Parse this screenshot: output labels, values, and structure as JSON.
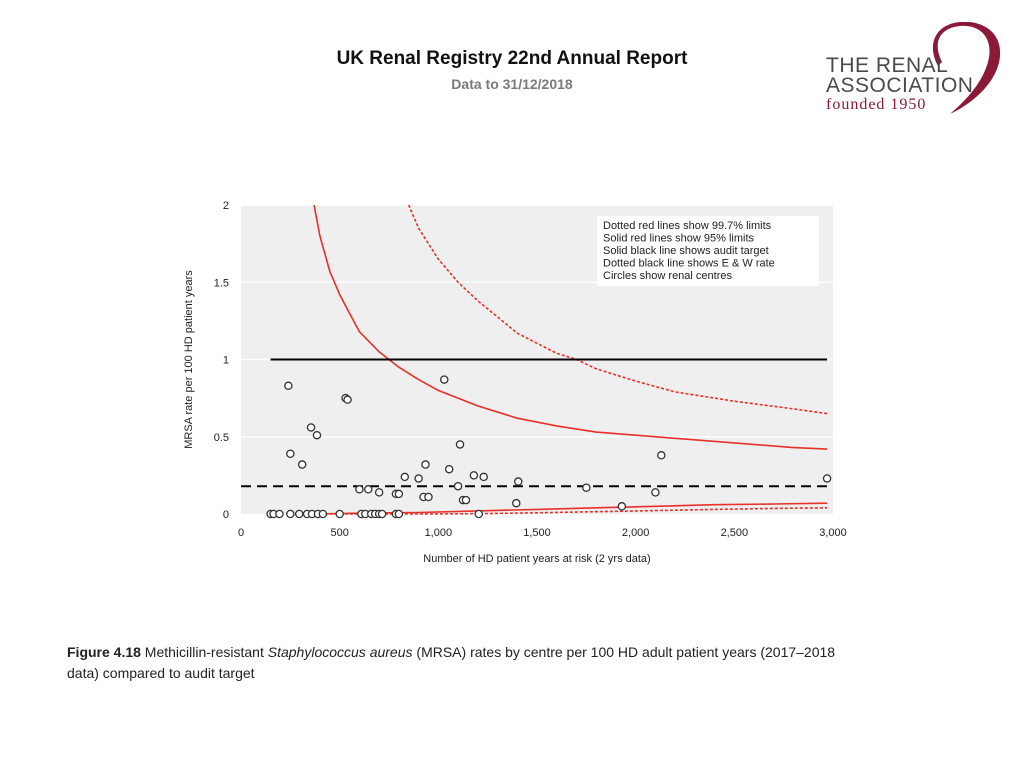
{
  "header": {
    "title": "UK Renal Registry 22nd Annual Report",
    "subtitle": "Data to 31/12/2018"
  },
  "logo": {
    "line1": "THE RENAL",
    "line2": "ASSOCIATION",
    "line3": "founded 1950",
    "color": "#8b1a3a"
  },
  "caption": {
    "label": "Figure 4.18",
    "text_before": " Methicillin-resistant ",
    "italic": "Staphylococcus aureus",
    "text_after": " (MRSA) rates by centre per 100 HD adult patient years (2017–2018 data) compared to audit target"
  },
  "chart_data": {
    "type": "scatter",
    "xlabel": "Number of HD patient years at risk (2 yrs data)",
    "ylabel": "MRSA rate per 100 HD patient years",
    "xlim": [
      0,
      3000
    ],
    "ylim": [
      0,
      2
    ],
    "x_ticks": [
      0,
      500,
      1000,
      1500,
      2000,
      2500,
      3000
    ],
    "x_tick_labels": [
      "0",
      "500",
      "1,000",
      "1,500",
      "2,000",
      "2,500",
      "3,000"
    ],
    "y_ticks": [
      0,
      0.5,
      1,
      1.5,
      2
    ],
    "y_tick_labels": [
      "0",
      "0.5",
      "1",
      "1.5",
      "2"
    ],
    "audit_target": 1,
    "ew_rate": 0.18,
    "legend": [
      "Dotted red lines show 99.7% limits",
      "Solid red lines show 95% limits",
      "Solid black line shows audit target",
      "Dotted black line shows E & W rate",
      "Circles show renal centres"
    ],
    "upper95": [
      [
        370,
        2
      ],
      [
        400,
        1.8
      ],
      [
        450,
        1.57
      ],
      [
        500,
        1.42
      ],
      [
        550,
        1.3
      ],
      [
        600,
        1.18
      ],
      [
        700,
        1.05
      ],
      [
        800,
        0.95
      ],
      [
        900,
        0.87
      ],
      [
        1000,
        0.8
      ],
      [
        1200,
        0.7
      ],
      [
        1400,
        0.62
      ],
      [
        1600,
        0.57
      ],
      [
        1800,
        0.53
      ],
      [
        2000,
        0.51
      ],
      [
        2200,
        0.49
      ],
      [
        2500,
        0.46
      ],
      [
        2800,
        0.43
      ],
      [
        2970,
        0.42
      ]
    ],
    "upper997": [
      [
        850,
        2
      ],
      [
        900,
        1.85
      ],
      [
        1000,
        1.65
      ],
      [
        1100,
        1.5
      ],
      [
        1200,
        1.38
      ],
      [
        1400,
        1.17
      ],
      [
        1600,
        1.04
      ],
      [
        1700,
        1.0
      ],
      [
        1800,
        0.94
      ],
      [
        2000,
        0.86
      ],
      [
        2200,
        0.79
      ],
      [
        2500,
        0.73
      ],
      [
        2800,
        0.68
      ],
      [
        2970,
        0.65
      ]
    ],
    "lower95": [
      [
        370,
        0
      ],
      [
        600,
        0.005
      ],
      [
        900,
        0.01
      ],
      [
        1200,
        0.02
      ],
      [
        1500,
        0.03
      ],
      [
        1800,
        0.04
      ],
      [
        2100,
        0.05
      ],
      [
        2400,
        0.06
      ],
      [
        2700,
        0.065
      ],
      [
        2970,
        0.07
      ]
    ],
    "lower997": [
      [
        400,
        0
      ],
      [
        900,
        0
      ],
      [
        1200,
        0.002
      ],
      [
        1500,
        0.008
      ],
      [
        1800,
        0.015
      ],
      [
        2100,
        0.022
      ],
      [
        2400,
        0.03
      ],
      [
        2700,
        0.036
      ],
      [
        2970,
        0.04
      ]
    ],
    "points": [
      {
        "x": 150,
        "y": 0
      },
      {
        "x": 165,
        "y": 0
      },
      {
        "x": 195,
        "y": 0
      },
      {
        "x": 250,
        "y": 0
      },
      {
        "x": 295,
        "y": 0
      },
      {
        "x": 335,
        "y": 0
      },
      {
        "x": 360,
        "y": 0
      },
      {
        "x": 390,
        "y": 0
      },
      {
        "x": 415,
        "y": 0
      },
      {
        "x": 500,
        "y": 0
      },
      {
        "x": 610,
        "y": 0
      },
      {
        "x": 630,
        "y": 0
      },
      {
        "x": 660,
        "y": 0
      },
      {
        "x": 680,
        "y": 0
      },
      {
        "x": 700,
        "y": 0
      },
      {
        "x": 715,
        "y": 0
      },
      {
        "x": 785,
        "y": 0
      },
      {
        "x": 800,
        "y": 0
      },
      {
        "x": 1205,
        "y": 0
      },
      {
        "x": 240,
        "y": 0.83
      },
      {
        "x": 250,
        "y": 0.39
      },
      {
        "x": 310,
        "y": 0.32
      },
      {
        "x": 355,
        "y": 0.56
      },
      {
        "x": 385,
        "y": 0.51
      },
      {
        "x": 530,
        "y": 0.75
      },
      {
        "x": 540,
        "y": 0.74
      },
      {
        "x": 1030,
        "y": 0.87
      },
      {
        "x": 600,
        "y": 0.16
      },
      {
        "x": 645,
        "y": 0.16
      },
      {
        "x": 700,
        "y": 0.14
      },
      {
        "x": 785,
        "y": 0.13
      },
      {
        "x": 800,
        "y": 0.13
      },
      {
        "x": 830,
        "y": 0.24
      },
      {
        "x": 900,
        "y": 0.23
      },
      {
        "x": 935,
        "y": 0.32
      },
      {
        "x": 925,
        "y": 0.11
      },
      {
        "x": 950,
        "y": 0.11
      },
      {
        "x": 1055,
        "y": 0.29
      },
      {
        "x": 1100,
        "y": 0.18
      },
      {
        "x": 1110,
        "y": 0.45
      },
      {
        "x": 1125,
        "y": 0.09
      },
      {
        "x": 1140,
        "y": 0.09
      },
      {
        "x": 1180,
        "y": 0.25
      },
      {
        "x": 1230,
        "y": 0.24
      },
      {
        "x": 1395,
        "y": 0.07
      },
      {
        "x": 1405,
        "y": 0.21
      },
      {
        "x": 1750,
        "y": 0.17
      },
      {
        "x": 1930,
        "y": 0.05
      },
      {
        "x": 2100,
        "y": 0.14
      },
      {
        "x": 2130,
        "y": 0.38
      },
      {
        "x": 2970,
        "y": 0.23
      }
    ],
    "colors": {
      "limit": "#e8302a",
      "line": "#000000",
      "panel": "#efefef",
      "grid": "#ffffff",
      "point": "#333333"
    }
  }
}
